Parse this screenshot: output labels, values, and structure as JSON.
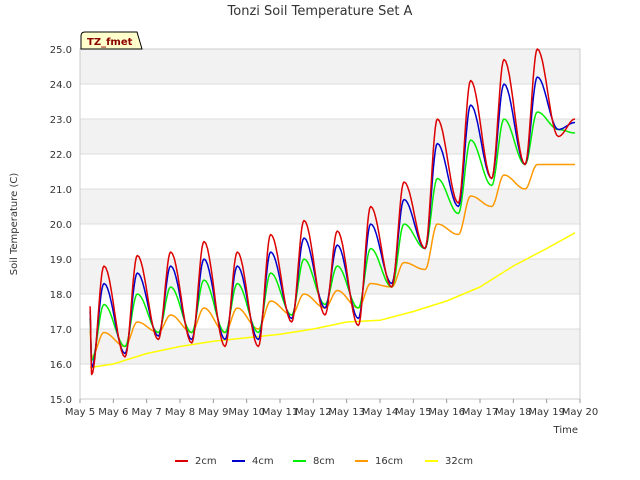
{
  "chart_data": {
    "type": "line",
    "title": "Tonzi Soil Temperature Set A",
    "xlabel": "Time",
    "ylabel": "Soil Temperature (C)",
    "badge": "TZ_fmet",
    "ylim": [
      15.0,
      25.0
    ],
    "xlim": [
      0,
      15
    ],
    "yticks": [
      "15.0",
      "16.0",
      "17.0",
      "18.0",
      "19.0",
      "20.0",
      "21.0",
      "22.0",
      "23.0",
      "24.0",
      "25.0"
    ],
    "xticks": [
      "May 5",
      "May 6",
      "May 7",
      "May 8",
      "May 9",
      "May 10",
      "May 11",
      "May 12",
      "May 13",
      "May 14",
      "May 15",
      "May 16",
      "May 17",
      "May 18",
      "May 19",
      "May 20"
    ],
    "grid": true,
    "legend_position": "bottom",
    "daily_min_max_note_free": true,
    "series": [
      {
        "name": "2cm",
        "color": "#dd0000",
        "daily_min": [
          15.7,
          16.2,
          16.7,
          16.6,
          16.5,
          16.5,
          17.2,
          17.4,
          17.1,
          18.2,
          19.3,
          20.6,
          21.3,
          21.7,
          22.5
        ],
        "daily_max": [
          18.8,
          19.1,
          19.2,
          19.5,
          19.2,
          19.7,
          20.1,
          19.8,
          20.5,
          21.2,
          23.0,
          24.1,
          24.7,
          25.0
        ],
        "end": [
          14.85,
          23.0
        ]
      },
      {
        "name": "4cm",
        "color": "#0000cc",
        "daily_min": [
          15.9,
          16.3,
          16.8,
          16.7,
          16.7,
          16.7,
          17.3,
          17.6,
          17.3,
          18.3,
          19.3,
          20.5,
          21.3,
          21.7,
          22.7
        ],
        "daily_max": [
          18.3,
          18.6,
          18.8,
          19.0,
          18.8,
          19.2,
          19.6,
          19.4,
          20.0,
          20.7,
          22.3,
          23.4,
          24.0,
          24.2
        ],
        "end": [
          14.85,
          22.9
        ]
      },
      {
        "name": "8cm",
        "color": "#00ee00",
        "daily_min": [
          16.1,
          16.5,
          16.9,
          16.9,
          16.9,
          16.9,
          17.4,
          17.7,
          17.6,
          18.2,
          19.3,
          20.3,
          21.1,
          21.7,
          22.7
        ],
        "daily_max": [
          17.7,
          18.0,
          18.2,
          18.4,
          18.3,
          18.6,
          19.0,
          18.8,
          19.3,
          20.0,
          21.3,
          22.4,
          23.0,
          23.2
        ],
        "end": [
          14.85,
          22.6
        ]
      },
      {
        "name": "16cm",
        "color": "#ff9900",
        "daily_min": [
          16.2,
          16.5,
          16.9,
          16.9,
          16.9,
          17.0,
          17.4,
          17.6,
          17.6,
          18.2,
          18.7,
          19.7,
          20.5,
          21.0
        ],
        "daily_max": [
          16.9,
          17.2,
          17.4,
          17.6,
          17.6,
          17.8,
          18.0,
          18.1,
          18.3,
          18.9,
          20.0,
          20.8,
          21.4,
          21.7
        ],
        "end": [
          14.85,
          21.7
        ]
      },
      {
        "name": "32cm",
        "color": "#ffff00",
        "x": [
          0.3,
          1.0,
          2.0,
          3.0,
          4.0,
          5.0,
          6.0,
          7.0,
          8.0,
          9.0,
          10.0,
          11.0,
          12.0,
          13.0,
          14.0,
          14.85
        ],
        "values": [
          15.9,
          16.0,
          16.3,
          16.5,
          16.65,
          16.75,
          16.85,
          17.0,
          17.2,
          17.25,
          17.5,
          17.8,
          18.2,
          18.8,
          19.3,
          19.75
        ]
      }
    ]
  }
}
